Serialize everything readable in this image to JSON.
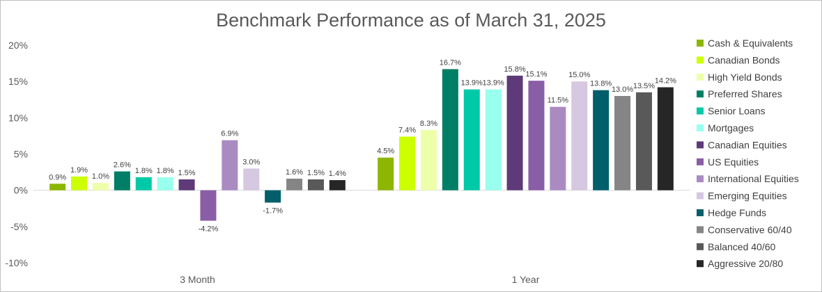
{
  "chart_data": {
    "type": "bar",
    "title": "Benchmark Performance as of March 31, 2025",
    "categories": [
      "3 Month",
      "1 Year"
    ],
    "ylim": [
      -10,
      20
    ],
    "yticks": [
      "-10%",
      "-5%",
      "0%",
      "5%",
      "10%",
      "15%",
      "20%"
    ],
    "ytick_values": [
      -10,
      -5,
      0,
      5,
      10,
      15,
      20
    ],
    "grid": false,
    "legend_position": "right",
    "series": [
      {
        "name": "Cash & Equivalents",
        "color": "#8db600",
        "values": [
          0.9,
          4.5
        ],
        "labels": [
          "0.9%",
          "4.5%"
        ]
      },
      {
        "name": "Canadian Bonds",
        "color": "#ccff00",
        "values": [
          1.9,
          7.4
        ],
        "labels": [
          "1.9%",
          "7.4%"
        ]
      },
      {
        "name": "High Yield Bonds",
        "color": "#eeffaa",
        "values": [
          1.0,
          8.3
        ],
        "labels": [
          "1.0%",
          "8.3%"
        ]
      },
      {
        "name": "Preferred Shares",
        "color": "#007f66",
        "values": [
          2.6,
          16.7
        ],
        "labels": [
          "2.6%",
          "16.7%"
        ]
      },
      {
        "name": "Senior Loans",
        "color": "#00c9a7",
        "values": [
          1.8,
          13.9
        ],
        "labels": [
          "1.8%",
          "13.9%"
        ]
      },
      {
        "name": "Mortgages",
        "color": "#99ffee",
        "values": [
          1.8,
          13.9
        ],
        "labels": [
          "1.8%",
          "13.9%"
        ]
      },
      {
        "name": "Canadian Equities",
        "color": "#5e3a78",
        "values": [
          1.5,
          15.8
        ],
        "labels": [
          "1.5%",
          "15.8%"
        ]
      },
      {
        "name": "US Equities",
        "color": "#8a5ea6",
        "values": [
          -4.2,
          15.1
        ],
        "labels": [
          "-4.2%",
          "15.1%"
        ]
      },
      {
        "name": "International Equities",
        "color": "#a98bc2",
        "values": [
          6.9,
          11.5
        ],
        "labels": [
          "6.9%",
          "11.5%"
        ]
      },
      {
        "name": "Emerging Equities",
        "color": "#d5c8e0",
        "values": [
          3.0,
          15.0
        ],
        "labels": [
          "3.0%",
          "15.0%"
        ]
      },
      {
        "name": "Hedge Funds",
        "color": "#005f6b",
        "values": [
          -1.7,
          13.8
        ],
        "labels": [
          "-1.7%",
          "13.8%"
        ]
      },
      {
        "name": "Conservative 60/40",
        "color": "#858585",
        "values": [
          1.6,
          13.0
        ],
        "labels": [
          "1.6%",
          "13.0%"
        ]
      },
      {
        "name": "Balanced 40/60",
        "color": "#595959",
        "values": [
          1.5,
          13.5
        ],
        "labels": [
          "1.5%",
          "13.5%"
        ]
      },
      {
        "name": "Aggressive 20/80",
        "color": "#262626",
        "values": [
          1.4,
          14.2
        ],
        "labels": [
          "1.4%",
          "14.2%"
        ]
      }
    ]
  }
}
